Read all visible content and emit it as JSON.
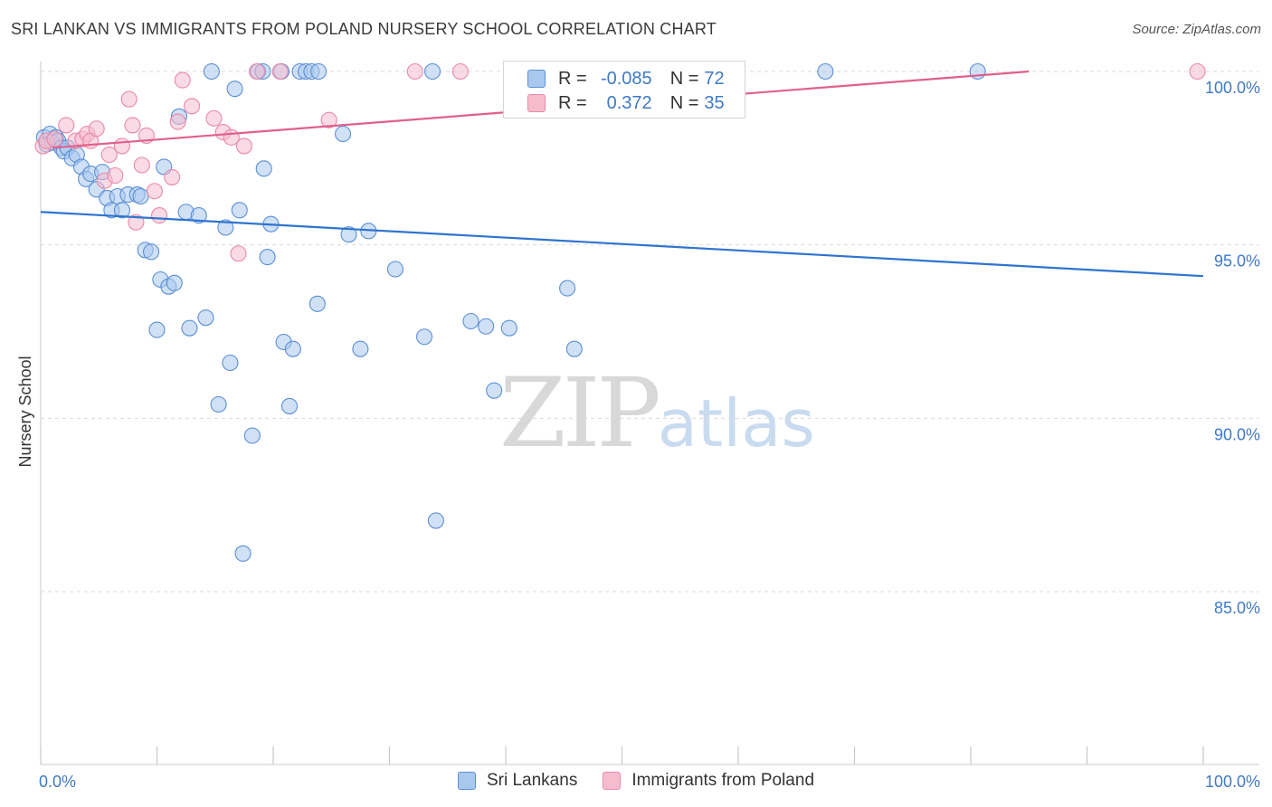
{
  "header": {
    "title": "SRI LANKAN VS IMMIGRANTS FROM POLAND NURSERY SCHOOL CORRELATION CHART",
    "source": "Source: ZipAtlas.com"
  },
  "legend_box": {
    "rows": [
      {
        "r_label": "R =",
        "r_value": "-0.085",
        "n_label": "N =",
        "n_value": "72"
      },
      {
        "r_label": "R =",
        "r_value": "0.372",
        "n_label": "N =",
        "n_value": "35"
      }
    ]
  },
  "bottom_legend": {
    "series1": "Sri Lankans",
    "series2": "Immigrants from Poland"
  },
  "watermark": {
    "zip": "ZIP",
    "atlas": "atlas"
  },
  "colors": {
    "blue_fill": "#a9c8ee",
    "blue_stroke": "#5b8fd4",
    "blue_line": "#2f74cf",
    "pink_fill": "#f6bccd",
    "pink_stroke": "#e88aa8",
    "pink_line": "#e0608e",
    "tick_text": "#3f79c8",
    "grid": "#d9d9d9"
  },
  "chart_data": {
    "type": "scatter",
    "title": "SRI LANKAN VS IMMIGRANTS FROM POLAND NURSERY SCHOOL CORRELATION CHART",
    "xlabel": "",
    "ylabel": "Nursery School",
    "xlim": [
      0,
      100
    ],
    "ylim": [
      80.5,
      100.8
    ],
    "x_tick_labels": [
      "0.0%",
      "100.0%"
    ],
    "y_ticks": [
      85,
      90,
      95,
      100
    ],
    "y_tick_labels": [
      "85.0%",
      "90.0%",
      "95.0%",
      "100.0%"
    ],
    "grid": true,
    "series": [
      {
        "name": "Sri Lankans",
        "r": -0.085,
        "n": 72,
        "trend": {
          "x": [
            0,
            100
          ],
          "y": [
            95.95,
            94.1
          ]
        },
        "points": [
          {
            "x": 0.3,
            "y": 98.1
          },
          {
            "x": 0.5,
            "y": 97.9
          },
          {
            "x": 0.8,
            "y": 98.2
          },
          {
            "x": 1.0,
            "y": 97.95
          },
          {
            "x": 1.3,
            "y": 98.1
          },
          {
            "x": 1.5,
            "y": 98.0
          },
          {
            "x": 1.8,
            "y": 97.8
          },
          {
            "x": 2.0,
            "y": 97.7
          },
          {
            "x": 2.3,
            "y": 97.8
          },
          {
            "x": 2.7,
            "y": 97.5
          },
          {
            "x": 3.1,
            "y": 97.6
          },
          {
            "x": 3.5,
            "y": 97.25
          },
          {
            "x": 3.9,
            "y": 96.9
          },
          {
            "x": 4.3,
            "y": 97.05
          },
          {
            "x": 4.8,
            "y": 96.6
          },
          {
            "x": 5.3,
            "y": 97.1
          },
          {
            "x": 5.7,
            "y": 96.35
          },
          {
            "x": 6.1,
            "y": 96.0
          },
          {
            "x": 6.6,
            "y": 96.4
          },
          {
            "x": 7.0,
            "y": 96.0
          },
          {
            "x": 7.5,
            "y": 96.45
          },
          {
            "x": 8.3,
            "y": 96.45
          },
          {
            "x": 8.6,
            "y": 96.4
          },
          {
            "x": 9.0,
            "y": 94.85
          },
          {
            "x": 9.5,
            "y": 94.8
          },
          {
            "x": 10.0,
            "y": 92.55
          },
          {
            "x": 10.3,
            "y": 94.0
          },
          {
            "x": 10.6,
            "y": 97.25
          },
          {
            "x": 11.0,
            "y": 93.8
          },
          {
            "x": 11.5,
            "y": 93.9
          },
          {
            "x": 11.9,
            "y": 98.7
          },
          {
            "x": 12.5,
            "y": 95.95
          },
          {
            "x": 12.8,
            "y": 92.6
          },
          {
            "x": 13.6,
            "y": 95.85
          },
          {
            "x": 14.2,
            "y": 92.9
          },
          {
            "x": 14.7,
            "y": 100.0
          },
          {
            "x": 15.3,
            "y": 90.4
          },
          {
            "x": 15.9,
            "y": 95.5
          },
          {
            "x": 16.3,
            "y": 91.6
          },
          {
            "x": 16.7,
            "y": 99.5
          },
          {
            "x": 17.1,
            "y": 96.0
          },
          {
            "x": 17.4,
            "y": 86.1
          },
          {
            "x": 18.2,
            "y": 89.5
          },
          {
            "x": 18.7,
            "y": 100.0
          },
          {
            "x": 19.1,
            "y": 100.0
          },
          {
            "x": 19.2,
            "y": 97.2
          },
          {
            "x": 19.5,
            "y": 94.65
          },
          {
            "x": 19.8,
            "y": 95.6
          },
          {
            "x": 20.7,
            "y": 100.0
          },
          {
            "x": 20.9,
            "y": 92.2
          },
          {
            "x": 21.4,
            "y": 90.35
          },
          {
            "x": 21.7,
            "y": 92.0
          },
          {
            "x": 22.3,
            "y": 100.0
          },
          {
            "x": 22.8,
            "y": 100.0
          },
          {
            "x": 23.3,
            "y": 100.0
          },
          {
            "x": 23.8,
            "y": 93.3
          },
          {
            "x": 23.9,
            "y": 100.0
          },
          {
            "x": 26.0,
            "y": 98.2
          },
          {
            "x": 26.5,
            "y": 95.3
          },
          {
            "x": 27.5,
            "y": 92.0
          },
          {
            "x": 28.2,
            "y": 95.4
          },
          {
            "x": 30.5,
            "y": 94.3
          },
          {
            "x": 33.0,
            "y": 92.35
          },
          {
            "x": 33.7,
            "y": 100.0
          },
          {
            "x": 34.0,
            "y": 87.05
          },
          {
            "x": 37.0,
            "y": 92.8
          },
          {
            "x": 38.3,
            "y": 92.65
          },
          {
            "x": 39.0,
            "y": 90.8
          },
          {
            "x": 40.3,
            "y": 92.6
          },
          {
            "x": 45.3,
            "y": 93.75
          },
          {
            "x": 45.9,
            "y": 92.0
          },
          {
            "x": 67.5,
            "y": 100.0
          },
          {
            "x": 80.6,
            "y": 100.0
          }
        ]
      },
      {
        "name": "Immigrants from Poland",
        "r": 0.372,
        "n": 35,
        "trend": {
          "x": [
            1.0,
            85.0
          ],
          "y": [
            97.8,
            100.0
          ]
        },
        "points": [
          {
            "x": 0.2,
            "y": 97.85
          },
          {
            "x": 0.5,
            "y": 98.0
          },
          {
            "x": 1.2,
            "y": 98.05
          },
          {
            "x": 2.2,
            "y": 98.45
          },
          {
            "x": 3.0,
            "y": 98.0
          },
          {
            "x": 3.6,
            "y": 98.05
          },
          {
            "x": 4.0,
            "y": 98.2
          },
          {
            "x": 4.3,
            "y": 98.0
          },
          {
            "x": 4.8,
            "y": 98.35
          },
          {
            "x": 5.5,
            "y": 96.85
          },
          {
            "x": 5.9,
            "y": 97.6
          },
          {
            "x": 6.4,
            "y": 97.0
          },
          {
            "x": 7.0,
            "y": 97.85
          },
          {
            "x": 7.6,
            "y": 99.2
          },
          {
            "x": 7.9,
            "y": 98.45
          },
          {
            "x": 8.2,
            "y": 95.65
          },
          {
            "x": 8.7,
            "y": 97.3
          },
          {
            "x": 9.1,
            "y": 98.15
          },
          {
            "x": 9.8,
            "y": 96.55
          },
          {
            "x": 10.2,
            "y": 95.85
          },
          {
            "x": 11.3,
            "y": 96.95
          },
          {
            "x": 11.8,
            "y": 98.55
          },
          {
            "x": 12.2,
            "y": 99.75
          },
          {
            "x": 13.0,
            "y": 99.0
          },
          {
            "x": 14.9,
            "y": 98.65
          },
          {
            "x": 15.7,
            "y": 98.25
          },
          {
            "x": 16.4,
            "y": 98.1
          },
          {
            "x": 17.0,
            "y": 94.75
          },
          {
            "x": 17.5,
            "y": 97.85
          },
          {
            "x": 18.6,
            "y": 100.0
          },
          {
            "x": 20.6,
            "y": 100.0
          },
          {
            "x": 24.8,
            "y": 98.6
          },
          {
            "x": 32.2,
            "y": 100.0
          },
          {
            "x": 36.1,
            "y": 100.0
          },
          {
            "x": 99.5,
            "y": 100.0
          }
        ]
      }
    ]
  }
}
